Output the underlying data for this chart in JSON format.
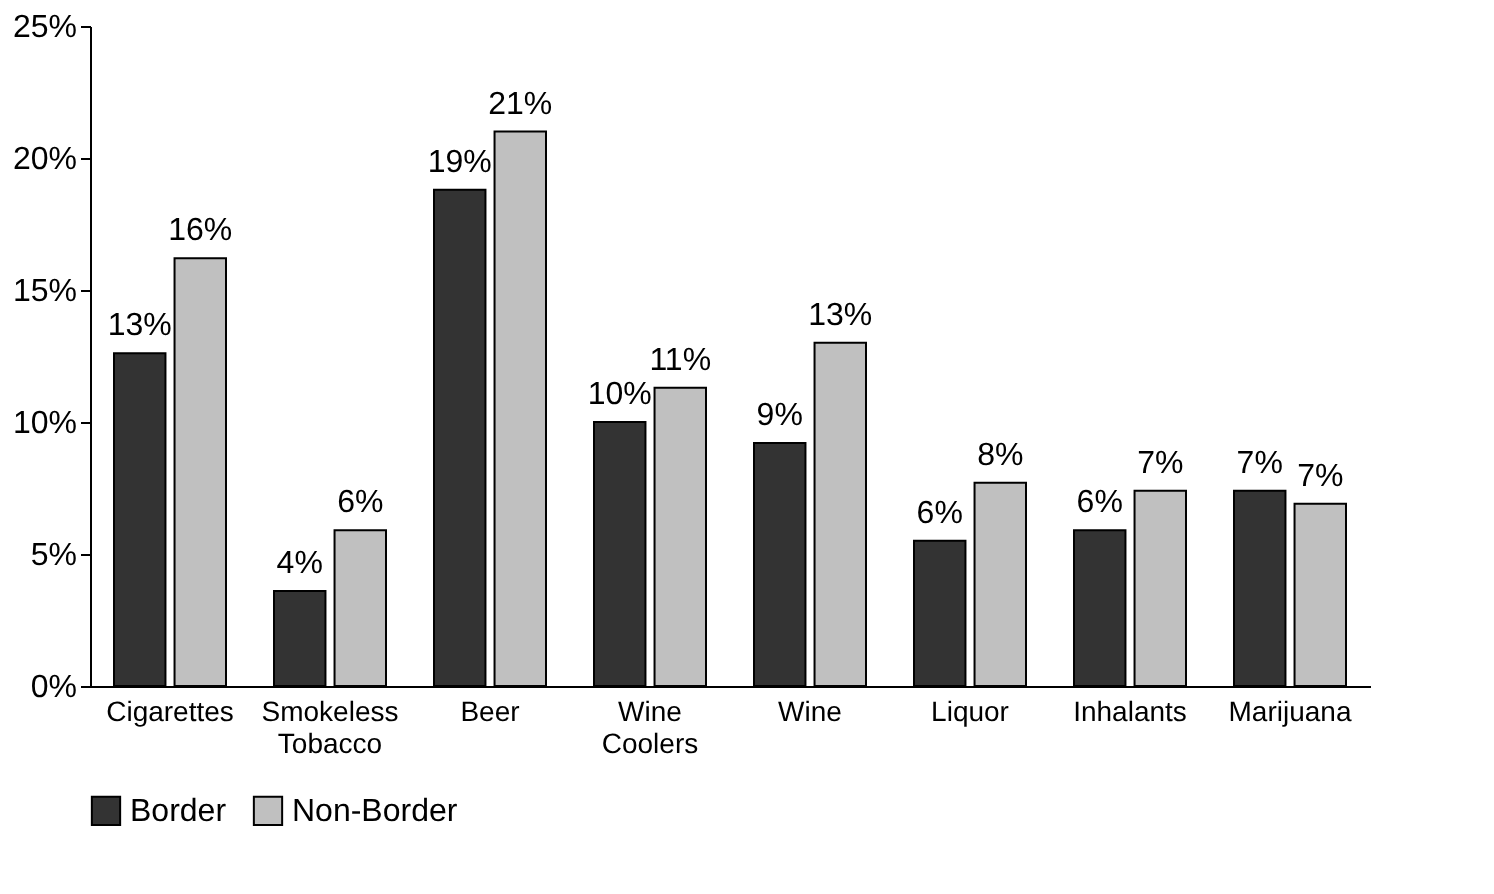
{
  "chart_data": {
    "type": "bar",
    "categories": [
      "Cigarettes",
      "Smokeless\nTobacco",
      "Beer",
      "Wine\nCoolers",
      "Wine",
      "Liquor",
      "Inhalants",
      "Marijuana"
    ],
    "series": [
      {
        "name": "Border",
        "color": "#333333",
        "values": [
          12.6,
          3.6,
          18.8,
          10.0,
          9.2,
          5.5,
          5.9,
          7.4
        ],
        "value_labels": [
          "13%",
          "4%",
          "19%",
          "10%",
          "9%",
          "6%",
          "6%",
          "7%"
        ]
      },
      {
        "name": "Non-Border",
        "color": "#c0c0c0",
        "values": [
          16.2,
          5.9,
          21.0,
          11.3,
          13.0,
          7.7,
          7.4,
          6.9
        ],
        "value_labels": [
          "16%",
          "6%",
          "21%",
          "11%",
          "13%",
          "8%",
          "7%",
          "7%"
        ]
      }
    ],
    "ylim": [
      0,
      25
    ],
    "yticks": [
      {
        "value": 0,
        "label": "0%"
      },
      {
        "value": 5,
        "label": "5%"
      },
      {
        "value": 10,
        "label": "10%"
      },
      {
        "value": 15,
        "label": "15%"
      },
      {
        "value": 20,
        "label": "20%"
      },
      {
        "value": 25,
        "label": "25%"
      }
    ],
    "grid": false,
    "legend": "bottom"
  }
}
